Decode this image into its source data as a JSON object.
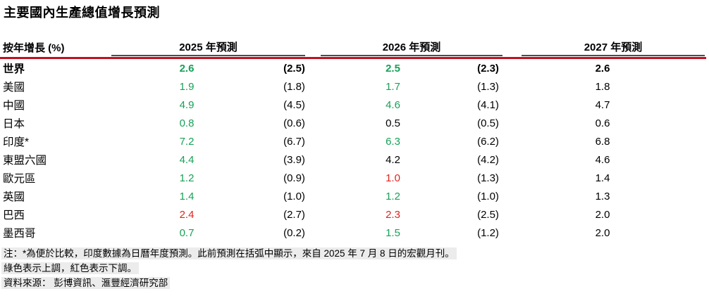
{
  "title": "主要國內生產總值增長預測",
  "table": {
    "row_axis_label": "按年增長 (%)",
    "col_groups": [
      "2025 年預測",
      "2026 年預測",
      "2027 年預測"
    ],
    "rows": [
      {
        "label": "世界",
        "values": [
          "2.6",
          "(2.5)",
          "2.5",
          "(2.3)",
          "2.6"
        ],
        "dirs": [
          "up",
          "prev",
          "up",
          "prev",
          "flat"
        ]
      },
      {
        "label": "美國",
        "values": [
          "1.9",
          "(1.8)",
          "1.7",
          "(1.3)",
          "1.8"
        ],
        "dirs": [
          "up",
          "prev",
          "up",
          "prev",
          "flat"
        ]
      },
      {
        "label": "中國",
        "values": [
          "4.9",
          "(4.5)",
          "4.6",
          "(4.1)",
          "4.7"
        ],
        "dirs": [
          "up",
          "prev",
          "up",
          "prev",
          "flat"
        ]
      },
      {
        "label": "日本",
        "values": [
          "0.8",
          "(0.6)",
          "0.5",
          "(0.5)",
          "0.6"
        ],
        "dirs": [
          "up",
          "prev",
          "flat",
          "prev",
          "flat"
        ]
      },
      {
        "label": "印度*",
        "values": [
          "7.2",
          "(6.7)",
          "6.3",
          "(6.2)",
          "6.8"
        ],
        "dirs": [
          "up",
          "prev",
          "up",
          "prev",
          "flat"
        ]
      },
      {
        "label": "東盟六國",
        "values": [
          "4.4",
          "(3.9)",
          "4.2",
          "(4.2)",
          "4.6"
        ],
        "dirs": [
          "up",
          "prev",
          "flat",
          "prev",
          "flat"
        ]
      },
      {
        "label": "歐元區",
        "values": [
          "1.2",
          "(0.9)",
          "1.0",
          "(1.3)",
          "1.4"
        ],
        "dirs": [
          "up",
          "prev",
          "down",
          "prev",
          "flat"
        ]
      },
      {
        "label": "英國",
        "values": [
          "1.4",
          "(1.0)",
          "1.2",
          "(1.0)",
          "1.3"
        ],
        "dirs": [
          "up",
          "prev",
          "up",
          "prev",
          "flat"
        ]
      },
      {
        "label": "巴西",
        "values": [
          "2.4",
          "(2.7)",
          "2.3",
          "(2.5)",
          "2.0"
        ],
        "dirs": [
          "down",
          "prev",
          "down",
          "prev",
          "flat"
        ]
      },
      {
        "label": "墨西哥",
        "values": [
          "0.7",
          "(0.2)",
          "1.5",
          "(1.2)",
          "2.0"
        ],
        "dirs": [
          "up",
          "prev",
          "up",
          "prev",
          "flat"
        ]
      }
    ]
  },
  "notes": [
    "注：*為便於比較，印度數據為日曆年度預測。此前預測在括弧中顯示，來自 2025 年 7 月 8 日的宏觀月刊。",
    "綠色表示上調，紅色表示下調。",
    "資料來源： 彭博資訊、滙豐經濟研究部"
  ],
  "colors": {
    "upgrade_green": "#17a157",
    "downgrade_red": "#e0231d",
    "header_rule_red": "#bf1120",
    "note_highlight": "#ececec"
  }
}
